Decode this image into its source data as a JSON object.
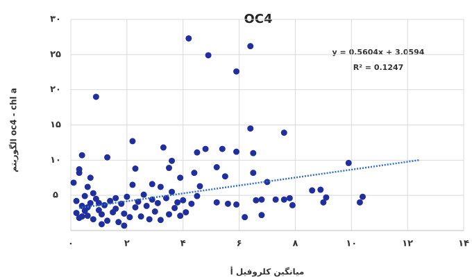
{
  "chart_data": {
    "type": "scatter",
    "title": "OC4",
    "x_label": "میانگین کلروفیل أ",
    "y_label": "الگوریتم oc4 - chl a",
    "annotations": [
      "y = 0.5604x + 3.0594",
      "R² = 0.1247"
    ],
    "color": "#1f2f9e",
    "trend_color": "#2e6cc7",
    "grid": true,
    "x": [
      0.9,
      4.2,
      4.9,
      6.4,
      5.9,
      6.4,
      7.6,
      2.2,
      3.3,
      4.5,
      4.8,
      5.4,
      5.9,
      6.5,
      0.4,
      1.3,
      3.6,
      9.9,
      3.5,
      5.2,
      2.3,
      0.3,
      0.3,
      4.4,
      6.5,
      0.7,
      3.9,
      5.5,
      7.0,
      0.1,
      0.6,
      2.2,
      3.2,
      4.6,
      8.6,
      8.9,
      2.9,
      7.6,
      7.8,
      7.9,
      6.6,
      6.8,
      7.3,
      5.2,
      5.6,
      9.1,
      9.0,
      10.4,
      10.3,
      6.2,
      6.8,
      5.9,
      4.1,
      0.2,
      0.4,
      0.5,
      0.6,
      0.7,
      0.8,
      0.9,
      1.0,
      1.1,
      1.2,
      1.3,
      1.4,
      1.5,
      1.6,
      1.7,
      1.8,
      1.9,
      2.0,
      2.1,
      2.3,
      2.4,
      2.5,
      2.6,
      2.7,
      2.8,
      2.9,
      3.0,
      3.1,
      3.2,
      3.4,
      3.5,
      3.6,
      3.7,
      3.8,
      3.9,
      4.0,
      4.3,
      4.5,
      0.3,
      0.5,
      0.2,
      0.8,
      1.1,
      1.6,
      1.9,
      0.4,
      0.6,
      1.0
    ],
    "values": [
      19.0,
      27.3,
      24.9,
      26.2,
      22.6,
      14.5,
      13.9,
      12.7,
      11.8,
      11.1,
      11.6,
      11.6,
      11.2,
      11.0,
      10.7,
      10.4,
      9.9,
      9.6,
      8.9,
      9.0,
      8.8,
      8.7,
      8.2,
      8.2,
      8.2,
      7.5,
      7.5,
      7.7,
      6.9,
      6.8,
      6.2,
      6.5,
      6.2,
      6.3,
      5.7,
      5.8,
      6.6,
      4.4,
      4.6,
      3.6,
      4.3,
      4.4,
      4.4,
      4.0,
      3.8,
      4.7,
      4.0,
      4.8,
      4.0,
      1.9,
      2.2,
      3.7,
      2.6,
      4.2,
      3.5,
      2.8,
      2.1,
      3.9,
      1.6,
      4.5,
      2.9,
      2.3,
      3.6,
      1.4,
      4.2,
      2.6,
      3.1,
      1.2,
      3.8,
      2.4,
      4.8,
      1.9,
      3.3,
      4.1,
      2.0,
      5.1,
      3.5,
      1.6,
      4.4,
      2.7,
      3.9,
      1.5,
      4.6,
      2.3,
      5.5,
      3.2,
      4.0,
      2.1,
      4.3,
      3.8,
      4.9,
      1.8,
      4.9,
      2.5,
      5.3,
      0.9,
      4.6,
      0.7,
      2.0,
      3.3,
      3.9
    ],
    "trend_x": [
      0.3,
      12.4
    ],
    "trend_y": [
      3.2,
      10.0
    ],
    "xlim": [
      0,
      14
    ],
    "ylim": [
      0,
      30
    ],
    "xticks": [
      {
        "value": 0,
        "label": "۰"
      },
      {
        "value": 2,
        "label": "۲"
      },
      {
        "value": 4,
        "label": "۴"
      },
      {
        "value": 6,
        "label": "۶"
      },
      {
        "value": 8,
        "label": "۸"
      },
      {
        "value": 10,
        "label": "۱۰"
      },
      {
        "value": 12,
        "label": "۱۲"
      },
      {
        "value": 14,
        "label": "۱۴"
      }
    ],
    "yticks": [
      {
        "value": 5,
        "label": "۵"
      },
      {
        "value": 10,
        "label": "۱۰"
      },
      {
        "value": 15,
        "label": "۱۵"
      },
      {
        "value": 20,
        "label": "۲۰"
      },
      {
        "value": 25,
        "label": "۲۵"
      },
      {
        "value": 30,
        "label": "۳۰"
      }
    ]
  }
}
